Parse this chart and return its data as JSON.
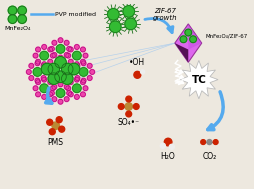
{
  "bg_color": "#ede8df",
  "green_color": "#33bb33",
  "green_dark": "#1a6e1a",
  "green_mid": "#28a028",
  "pink_color": "#ee44aa",
  "pink_dark": "#aa0077",
  "purple_light": "#dd66ee",
  "purple_dark": "#993399",
  "purple_very_dark": "#551155",
  "arrow_color": "#55aaee",
  "red_atom": "#cc2200",
  "white_color": "#ffffff",
  "gray_atom": "#888888",
  "tan_atom": "#bb8833",
  "label_mnfe": "MnFe₂O₄",
  "label_pvp": "PVP modified",
  "label_zif67_line1": "ZIF-67",
  "label_zif67_line2": "growth",
  "label_composite": "MnFe₂O₄/ZIF-67",
  "label_oh": "•OH",
  "label_so4": "SO₄•⁻",
  "label_pms": "PMS",
  "label_tc": "TC",
  "label_h2o": "H₂O",
  "label_co2": "CO₂",
  "line_color": "#66aadd"
}
